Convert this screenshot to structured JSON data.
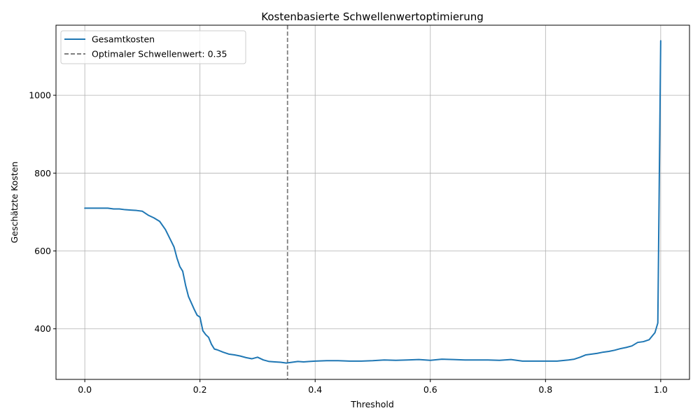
{
  "chart_data": {
    "type": "line",
    "title": "Kostenbasierte Schwellenwertoptimierung",
    "xlabel": "Threshold",
    "ylabel": "Geschätzte Kosten",
    "xlim": [
      -0.05,
      1.05
    ],
    "ylim": [
      270,
      1180
    ],
    "x_ticks": [
      0.0,
      0.2,
      0.4,
      0.6,
      0.8,
      1.0
    ],
    "x_tick_labels": [
      "0.0",
      "0.2",
      "0.4",
      "0.6",
      "0.8",
      "1.0"
    ],
    "y_ticks": [
      400,
      600,
      800,
      1000
    ],
    "y_tick_labels": [
      "400",
      "600",
      "800",
      "1000"
    ],
    "grid": true,
    "legend_position": "top-left",
    "series": [
      {
        "name": "Gesamtkosten",
        "color": "#1f77b4",
        "style": "solid",
        "x": [
          0.0,
          0.02,
          0.04,
          0.05,
          0.06,
          0.07,
          0.08,
          0.09,
          0.1,
          0.11,
          0.12,
          0.13,
          0.14,
          0.15,
          0.155,
          0.16,
          0.165,
          0.17,
          0.175,
          0.18,
          0.19,
          0.195,
          0.2,
          0.205,
          0.21,
          0.215,
          0.22,
          0.225,
          0.23,
          0.24,
          0.25,
          0.26,
          0.27,
          0.28,
          0.29,
          0.3,
          0.31,
          0.32,
          0.33,
          0.34,
          0.35,
          0.36,
          0.37,
          0.38,
          0.39,
          0.4,
          0.42,
          0.44,
          0.46,
          0.48,
          0.5,
          0.52,
          0.54,
          0.56,
          0.58,
          0.6,
          0.62,
          0.64,
          0.66,
          0.68,
          0.7,
          0.72,
          0.74,
          0.76,
          0.78,
          0.8,
          0.82,
          0.84,
          0.85,
          0.86,
          0.87,
          0.88,
          0.89,
          0.9,
          0.91,
          0.92,
          0.93,
          0.94,
          0.95,
          0.96,
          0.97,
          0.98,
          0.99,
          0.995,
          1.0
        ],
        "y": [
          710,
          710,
          710,
          708,
          708,
          706,
          705,
          704,
          702,
          692,
          685,
          676,
          655,
          625,
          610,
          582,
          560,
          548,
          512,
          483,
          450,
          435,
          430,
          395,
          385,
          378,
          360,
          348,
          346,
          340,
          335,
          333,
          330,
          326,
          323,
          327,
          320,
          316,
          315,
          314,
          312,
          314,
          316,
          315,
          316,
          317,
          318,
          318,
          317,
          317,
          318,
          320,
          319,
          320,
          321,
          319,
          322,
          321,
          320,
          320,
          320,
          319,
          321,
          317,
          317,
          317,
          317,
          320,
          322,
          327,
          333,
          335,
          337,
          340,
          342,
          345,
          349,
          352,
          356,
          365,
          367,
          372,
          390,
          415,
          1140
        ]
      }
    ],
    "vline": {
      "x": 0.352,
      "label": "Optimaler Schwellenwert: 0.35",
      "color": "#7f7f7f",
      "style": "dashed"
    }
  }
}
